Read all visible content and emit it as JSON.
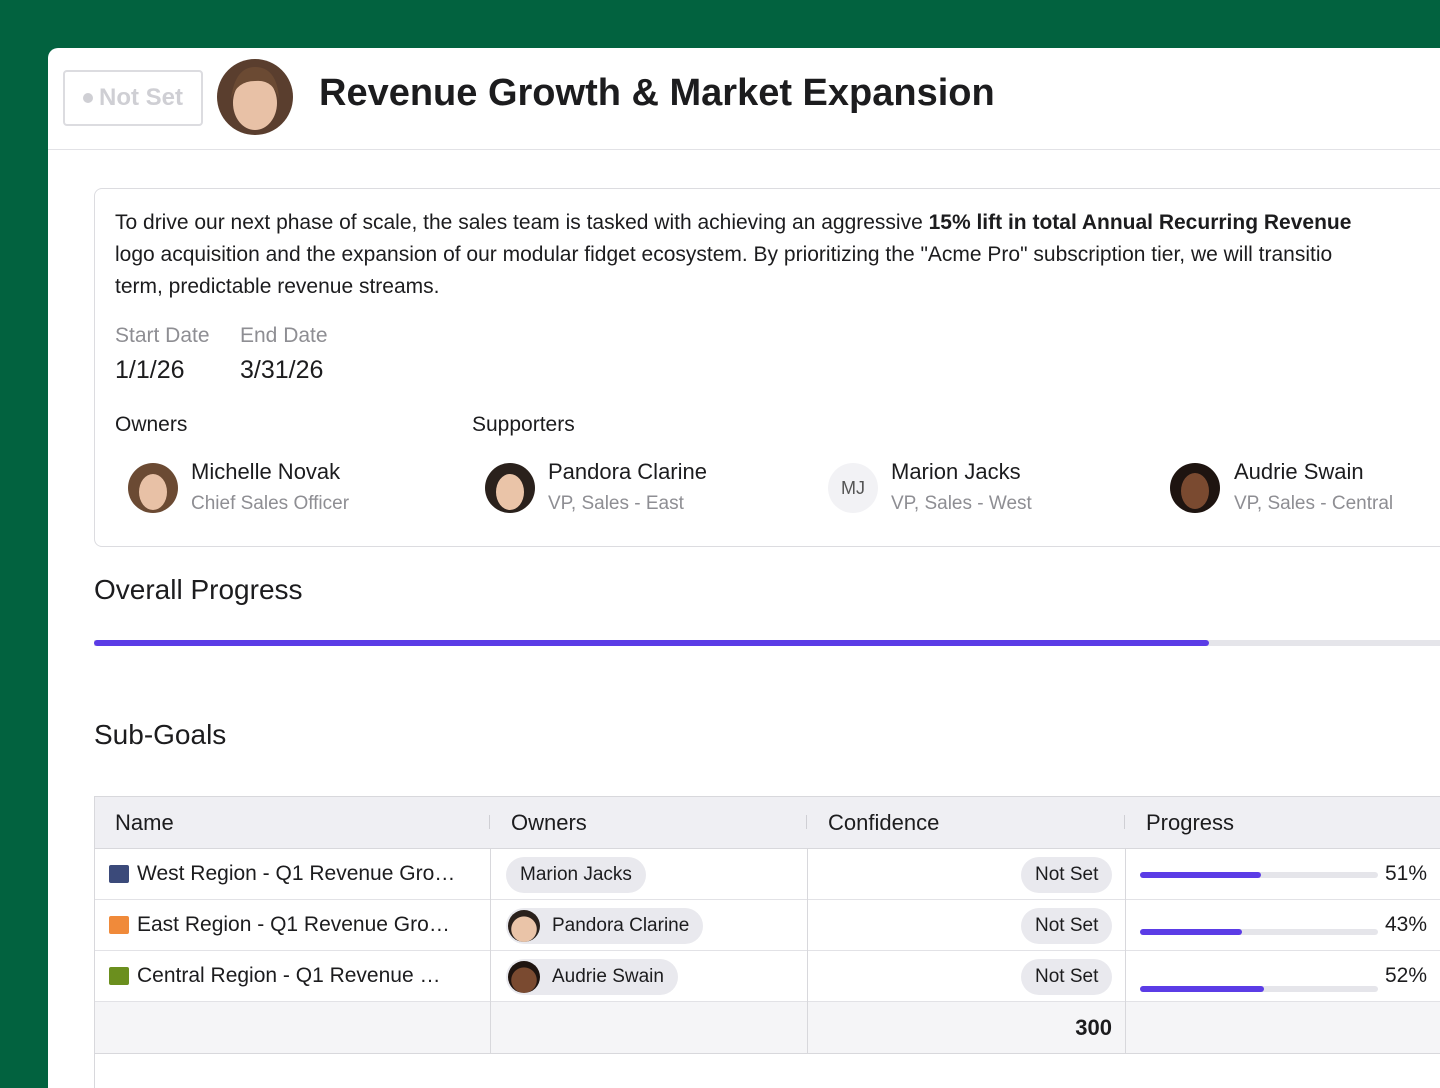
{
  "header": {
    "status": "Not Set",
    "title": "Revenue Growth & Market Expansion"
  },
  "description": {
    "line1": {
      "text": "To drive our next phase of scale, the sales team is tasked with achieving an aggressive ",
      "bold": "15% lift in total Annual Recurring Revenue"
    },
    "line2": "logo acquisition and the expansion of our modular fidget ecosystem. By prioritizing the \"Acme Pro\" subscription tier, we will transitio",
    "line3": "term, predictable revenue streams."
  },
  "dates": {
    "start_label": "Start Date",
    "start": "1/1/26",
    "end_label": "End Date",
    "end": "3/31/26"
  },
  "owners": {
    "label": "Owners",
    "people": [
      {
        "name": "Michelle Novak",
        "role": "Chief Sales Officer"
      }
    ]
  },
  "supporters": {
    "label": "Supporters",
    "people": [
      {
        "name": "Pandora Clarine",
        "role": "VP, Sales - East"
      },
      {
        "name": "Marion Jacks",
        "role": "VP, Sales - West",
        "initials": "MJ"
      },
      {
        "name": "Audrie Swain",
        "role": "VP, Sales - Central"
      }
    ]
  },
  "overall_progress": {
    "title": "Overall Progress",
    "value": 82
  },
  "sub_goals": {
    "title": "Sub-Goals",
    "columns": [
      "Name",
      "Owners",
      "Confidence",
      "Progress"
    ],
    "rows": [
      {
        "name": "West Region - Q1 Revenue Gro…",
        "owner": "Marion Jacks",
        "confidence": "Not Set",
        "progress": {
          "value": 51,
          "label": "51%"
        }
      },
      {
        "name": "East Region - Q1 Revenue Gro…",
        "owner": "Pandora Clarine",
        "confidence": "Not Set",
        "progress": {
          "value": 43,
          "label": "43%"
        }
      },
      {
        "name": "Central Region - Q1 Revenue …",
        "owner": "Audrie Swain",
        "confidence": "Not Set",
        "progress": {
          "value": 52,
          "label": "52%"
        }
      }
    ],
    "footer_total": 300
  }
}
